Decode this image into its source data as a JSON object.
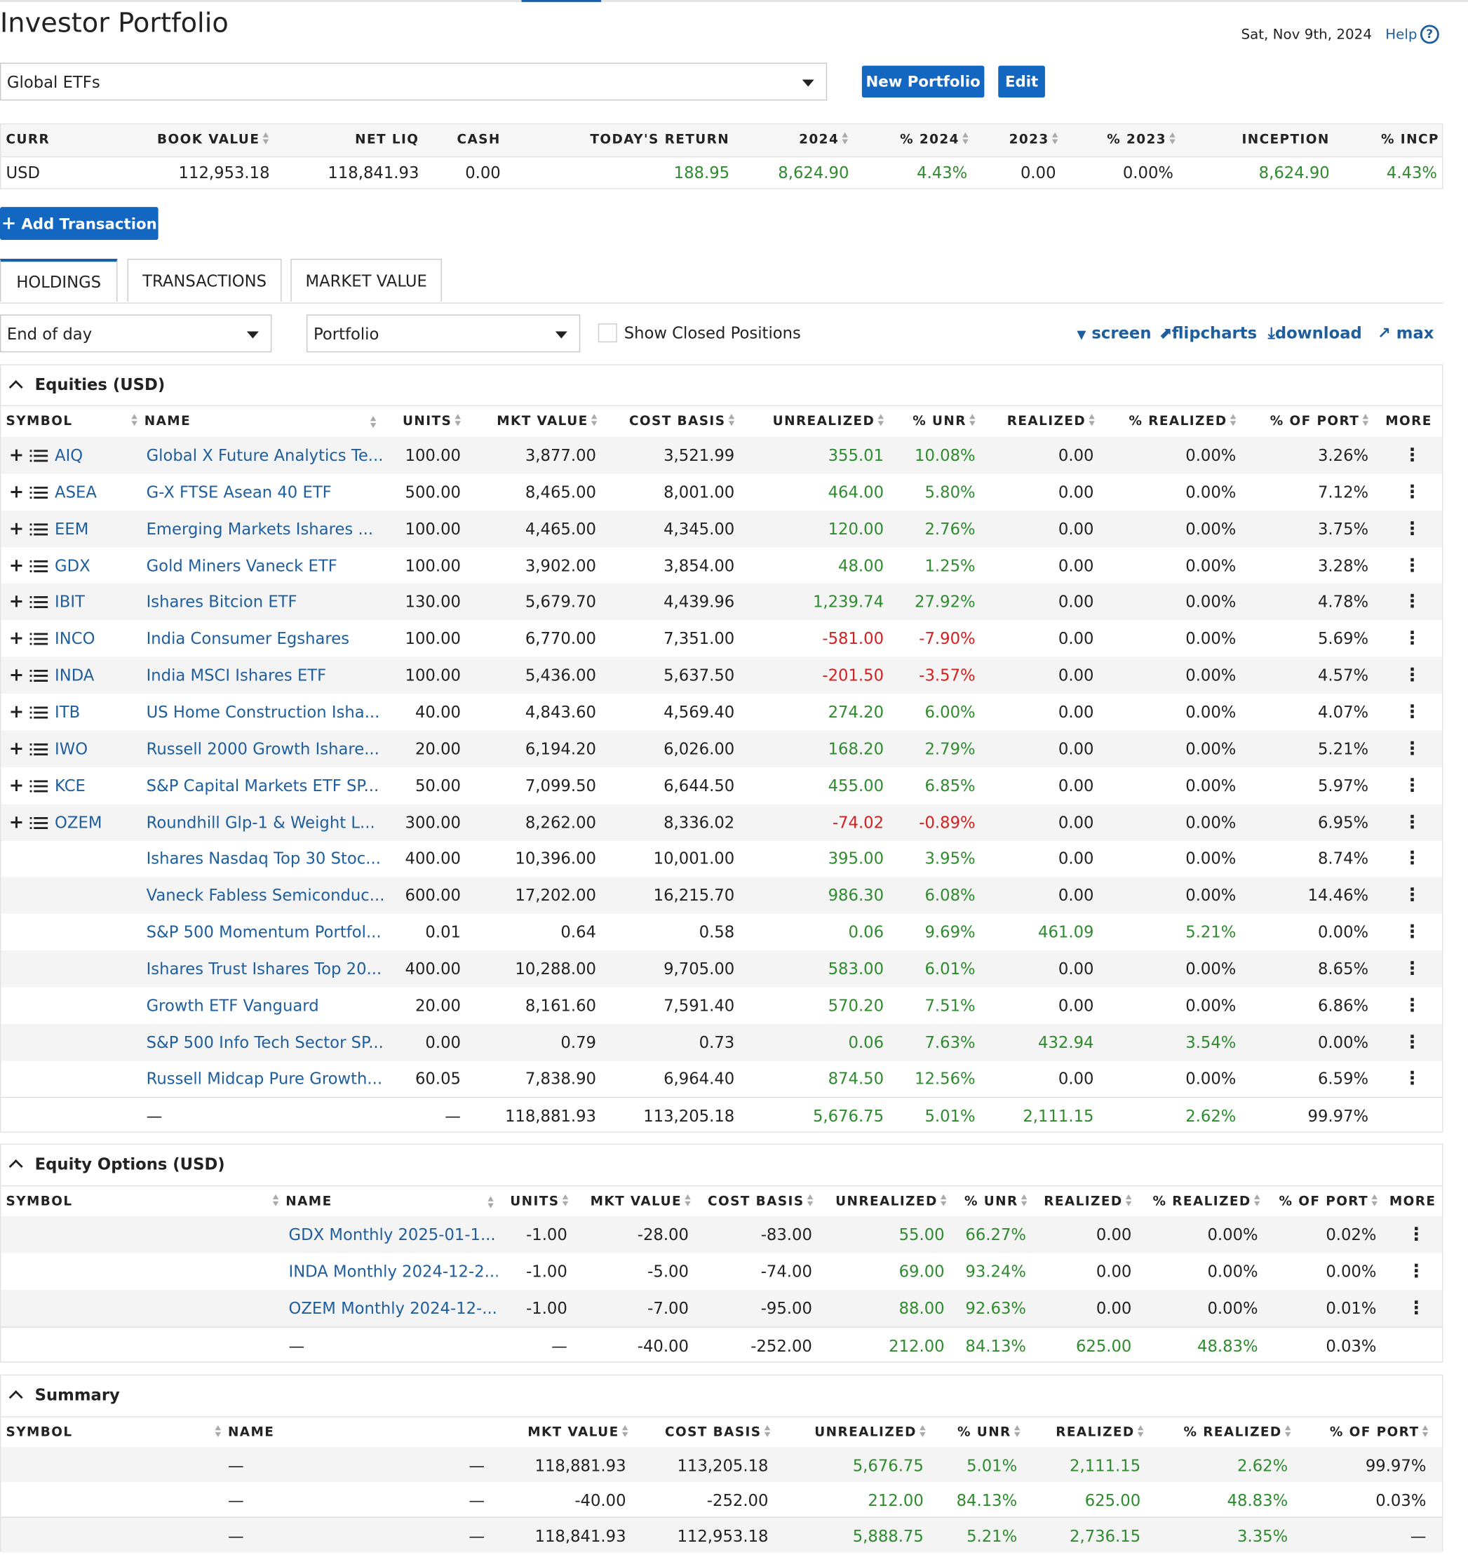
{
  "page": {
    "title": "Investor Portfolio",
    "date": "Sat, Nov 9th, 2024",
    "help_label": "Help",
    "help_glyph": "?"
  },
  "portfolio_select": {
    "value": "Global ETFs"
  },
  "buttons": {
    "new_portfolio": "New Portfolio",
    "edit": "Edit",
    "add_transaction": "Add Transaction",
    "add_transaction_glyph": "+"
  },
  "summary": {
    "headers": [
      "CURR",
      "BOOK VALUE",
      "NET LIQ",
      "CASH",
      "TODAY'S RETURN",
      "2024",
      "% 2024",
      "2023",
      "% 2023",
      "INCEPTION",
      "% INCP"
    ],
    "values": [
      "USD",
      "112,953.18",
      "118,841.93",
      "0.00",
      "188.95",
      "8,624.90",
      "4.43%",
      "0.00",
      "0.00%",
      "8,624.90",
      "4.43%"
    ]
  },
  "tabs": [
    "HOLDINGS",
    "TRANSACTIONS",
    "MARKET VALUE"
  ],
  "filters": {
    "timeframe": "End of day",
    "view": "Portfolio",
    "show_closed_label": "Show Closed Positions"
  },
  "tools": {
    "screen": "screen",
    "flipcharts": "flipcharts",
    "download": "download",
    "max": "max",
    "screen_glyph": "▼",
    "flipcharts_glyph": "⬈",
    "download_glyph": "⤓",
    "max_glyph": "↗"
  },
  "row_icons": {
    "add_glyph": "+",
    "more_glyph": "⋮"
  },
  "equities": {
    "title": "Equities (USD)",
    "headers": [
      "SYMBOL",
      "NAME",
      "UNITS",
      "MKT VALUE",
      "COST BASIS",
      "UNREALIZED",
      "% UNR",
      "REALIZED",
      "% REALIZED",
      "% OF PORT",
      "MORE"
    ],
    "rows": [
      {
        "symbol": "AIQ",
        "name": "Global X Future Analytics Te...",
        "units": "100.00",
        "mkt": "3,877.00",
        "cost": "3,521.99",
        "unr": "355.01",
        "unr_pct": "10.08%",
        "real": "0.00",
        "real_pct": "0.00%",
        "port": "3.26%",
        "neg": false
      },
      {
        "symbol": "ASEA",
        "name": "G-X FTSE Asean 40 ETF",
        "units": "500.00",
        "mkt": "8,465.00",
        "cost": "8,001.00",
        "unr": "464.00",
        "unr_pct": "5.80%",
        "real": "0.00",
        "real_pct": "0.00%",
        "port": "7.12%",
        "neg": false
      },
      {
        "symbol": "EEM",
        "name": "Emerging Markets Ishares ...",
        "units": "100.00",
        "mkt": "4,465.00",
        "cost": "4,345.00",
        "unr": "120.00",
        "unr_pct": "2.76%",
        "real": "0.00",
        "real_pct": "0.00%",
        "port": "3.75%",
        "neg": false
      },
      {
        "symbol": "GDX",
        "name": "Gold Miners Vaneck ETF",
        "units": "100.00",
        "mkt": "3,902.00",
        "cost": "3,854.00",
        "unr": "48.00",
        "unr_pct": "1.25%",
        "real": "0.00",
        "real_pct": "0.00%",
        "port": "3.28%",
        "neg": false
      },
      {
        "symbol": "IBIT",
        "name": "Ishares Bitcion ETF",
        "units": "130.00",
        "mkt": "5,679.70",
        "cost": "4,439.96",
        "unr": "1,239.74",
        "unr_pct": "27.92%",
        "real": "0.00",
        "real_pct": "0.00%",
        "port": "4.78%",
        "neg": false
      },
      {
        "symbol": "INCO",
        "name": "India Consumer Egshares",
        "units": "100.00",
        "mkt": "6,770.00",
        "cost": "7,351.00",
        "unr": "-581.00",
        "unr_pct": "-7.90%",
        "real": "0.00",
        "real_pct": "0.00%",
        "port": "5.69%",
        "neg": true
      },
      {
        "symbol": "INDA",
        "name": "India MSCI Ishares ETF",
        "units": "100.00",
        "mkt": "5,436.00",
        "cost": "5,637.50",
        "unr": "-201.50",
        "unr_pct": "-3.57%",
        "real": "0.00",
        "real_pct": "0.00%",
        "port": "4.57%",
        "neg": true
      },
      {
        "symbol": "ITB",
        "name": "US Home Construction Isha...",
        "units": "40.00",
        "mkt": "4,843.60",
        "cost": "4,569.40",
        "unr": "274.20",
        "unr_pct": "6.00%",
        "real": "0.00",
        "real_pct": "0.00%",
        "port": "4.07%",
        "neg": false
      },
      {
        "symbol": "IWO",
        "name": "Russell 2000 Growth Ishare...",
        "units": "20.00",
        "mkt": "6,194.20",
        "cost": "6,026.00",
        "unr": "168.20",
        "unr_pct": "2.79%",
        "real": "0.00",
        "real_pct": "0.00%",
        "port": "5.21%",
        "neg": false
      },
      {
        "symbol": "KCE",
        "name": "S&P Capital Markets ETF SP...",
        "units": "50.00",
        "mkt": "7,099.50",
        "cost": "6,644.50",
        "unr": "455.00",
        "unr_pct": "6.85%",
        "real": "0.00",
        "real_pct": "0.00%",
        "port": "5.97%",
        "neg": false
      },
      {
        "symbol": "OZEM",
        "name": "Roundhill Glp-1 & Weight L...",
        "units": "300.00",
        "mkt": "8,262.00",
        "cost": "8,336.02",
        "unr": "-74.02",
        "unr_pct": "-0.89%",
        "real": "0.00",
        "real_pct": "0.00%",
        "port": "6.95%",
        "neg": true
      },
      {
        "symbol": "",
        "name": "Ishares Nasdaq Top 30 Stoc...",
        "units": "400.00",
        "mkt": "10,396.00",
        "cost": "10,001.00",
        "unr": "395.00",
        "unr_pct": "3.95%",
        "real": "0.00",
        "real_pct": "0.00%",
        "port": "8.74%",
        "neg": false
      },
      {
        "symbol": "",
        "name": "Vaneck Fabless Semiconduc...",
        "units": "600.00",
        "mkt": "17,202.00",
        "cost": "16,215.70",
        "unr": "986.30",
        "unr_pct": "6.08%",
        "real": "0.00",
        "real_pct": "0.00%",
        "port": "14.46%",
        "neg": false
      },
      {
        "symbol": "",
        "name": "S&P 500 Momentum Portfol...",
        "units": "0.01",
        "mkt": "0.64",
        "cost": "0.58",
        "unr": "0.06",
        "unr_pct": "9.69%",
        "real": "461.09",
        "real_pct": "5.21%",
        "port": "0.00%",
        "neg": false
      },
      {
        "symbol": "",
        "name": "Ishares Trust Ishares Top 20...",
        "units": "400.00",
        "mkt": "10,288.00",
        "cost": "9,705.00",
        "unr": "583.00",
        "unr_pct": "6.01%",
        "real": "0.00",
        "real_pct": "0.00%",
        "port": "8.65%",
        "neg": false
      },
      {
        "symbol": "",
        "name": "Growth ETF Vanguard",
        "units": "20.00",
        "mkt": "8,161.60",
        "cost": "7,591.40",
        "unr": "570.20",
        "unr_pct": "7.51%",
        "real": "0.00",
        "real_pct": "0.00%",
        "port": "6.86%",
        "neg": false
      },
      {
        "symbol": "",
        "name": "S&P 500 Info Tech Sector SP...",
        "units": "0.00",
        "mkt": "0.79",
        "cost": "0.73",
        "unr": "0.06",
        "unr_pct": "7.63%",
        "real": "432.94",
        "real_pct": "3.54%",
        "port": "0.00%",
        "neg": false
      },
      {
        "symbol": "",
        "name": "Russell Midcap Pure Growth...",
        "units": "60.05",
        "mkt": "7,838.90",
        "cost": "6,964.40",
        "unr": "874.50",
        "unr_pct": "12.56%",
        "real": "0.00",
        "real_pct": "0.00%",
        "port": "6.59%",
        "neg": false
      }
    ],
    "total": {
      "name": "—",
      "units": "—",
      "mkt": "118,881.93",
      "cost": "113,205.18",
      "unr": "5,676.75",
      "unr_pct": "5.01%",
      "real": "2,111.15",
      "real_pct": "2.62%",
      "port": "99.97%"
    }
  },
  "options": {
    "title": "Equity Options (USD)",
    "headers": [
      "SYMBOL",
      "NAME",
      "UNITS",
      "MKT VALUE",
      "COST BASIS",
      "UNREALIZED",
      "% UNR",
      "REALIZED",
      "% REALIZED",
      "% OF PORT",
      "MORE"
    ],
    "rows": [
      {
        "name": "GDX Monthly 2025-01-1...",
        "units": "-1.00",
        "mkt": "-28.00",
        "cost": "-83.00",
        "unr": "55.00",
        "unr_pct": "66.27%",
        "real": "0.00",
        "real_pct": "0.00%",
        "port": "0.02%"
      },
      {
        "name": "INDA Monthly 2024-12-2...",
        "units": "-1.00",
        "mkt": "-5.00",
        "cost": "-74.00",
        "unr": "69.00",
        "unr_pct": "93.24%",
        "real": "0.00",
        "real_pct": "0.00%",
        "port": "0.00%"
      },
      {
        "name": "OZEM Monthly 2024-12-...",
        "units": "-1.00",
        "mkt": "-7.00",
        "cost": "-95.00",
        "unr": "88.00",
        "unr_pct": "92.63%",
        "real": "0.00",
        "real_pct": "0.00%",
        "port": "0.01%"
      }
    ],
    "total": {
      "name": "—",
      "units": "—",
      "mkt": "-40.00",
      "cost": "-252.00",
      "unr": "212.00",
      "unr_pct": "84.13%",
      "real": "625.00",
      "real_pct": "48.83%",
      "port": "0.03%"
    }
  },
  "summary_section": {
    "title": "Summary",
    "headers": [
      "SYMBOL",
      "NAME",
      "MKT VALUE",
      "COST BASIS",
      "UNREALIZED",
      "% UNR",
      "REALIZED",
      "% REALIZED",
      "% OF PORT"
    ],
    "rows": [
      {
        "symbol": "—",
        "name": "—",
        "mkt": "118,881.93",
        "cost": "113,205.18",
        "unr": "5,676.75",
        "unr_pct": "5.01%",
        "real": "2,111.15",
        "real_pct": "2.62%",
        "port": "99.97%"
      },
      {
        "symbol": "—",
        "name": "—",
        "mkt": "-40.00",
        "cost": "-252.00",
        "unr": "212.00",
        "unr_pct": "84.13%",
        "real": "625.00",
        "real_pct": "48.83%",
        "port": "0.03%"
      },
      {
        "symbol": "—",
        "name": "—",
        "mkt": "118,841.93",
        "cost": "112,953.18",
        "unr": "5,888.75",
        "unr_pct": "5.21%",
        "real": "2,736.15",
        "real_pct": "3.35%",
        "port": "—"
      }
    ]
  }
}
